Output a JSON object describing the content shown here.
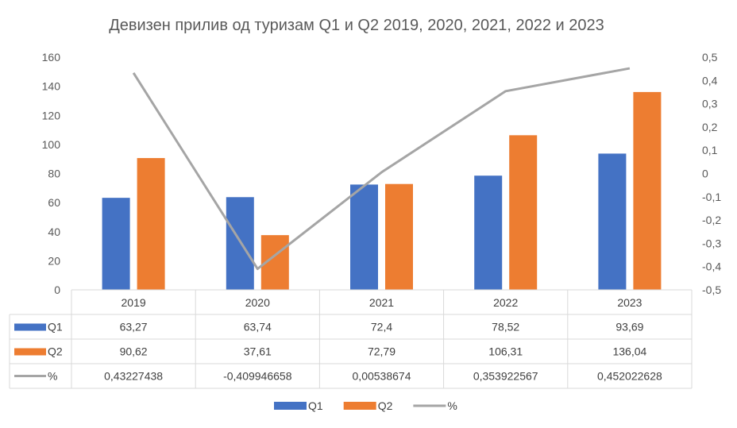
{
  "chart_data": {
    "type": "bar",
    "title": "Девизен прилив од туризам Q1 и Q2 2019, 2020,  2021, 2022 и 2023",
    "categories": [
      "2019",
      "2020",
      "2021",
      "2022",
      "2023"
    ],
    "series": [
      {
        "name": "Q1",
        "type": "bar",
        "axis": "left",
        "color": "#4472C4",
        "values": [
          63.27,
          63.74,
          72.4,
          78.52,
          93.69
        ],
        "labels": [
          "63,27",
          "63,74",
          "72,4",
          "78,52",
          "93,69"
        ]
      },
      {
        "name": "Q2",
        "type": "bar",
        "axis": "left",
        "color": "#ED7D31",
        "values": [
          90.62,
          37.61,
          72.79,
          106.31,
          136.04
        ],
        "labels": [
          "90,62",
          "37,61",
          "72,79",
          "106,31",
          "136,04"
        ]
      },
      {
        "name": "%",
        "type": "line",
        "axis": "right",
        "color": "#A5A5A5",
        "values": [
          0.43227438,
          -0.409946658,
          0.00538674,
          0.353922567,
          0.452022628
        ],
        "labels": [
          "0,43227438",
          "-0,409946658",
          "0,00538674",
          "0,353922567",
          "0,452022628"
        ]
      }
    ],
    "y_left": {
      "range": [
        0,
        160
      ],
      "ticks": [
        "0",
        "20",
        "40",
        "60",
        "80",
        "100",
        "120",
        "140",
        "160"
      ]
    },
    "y_right": {
      "range": [
        -0.5,
        0.5
      ],
      "ticks": [
        "-0,5",
        "-0,4",
        "-0,3",
        "-0,2",
        "-0,1",
        "0",
        "0,1",
        "0,2",
        "0,3",
        "0,4",
        "0,5"
      ]
    },
    "grid": false,
    "data_table": true,
    "legend_position": "bottom"
  }
}
